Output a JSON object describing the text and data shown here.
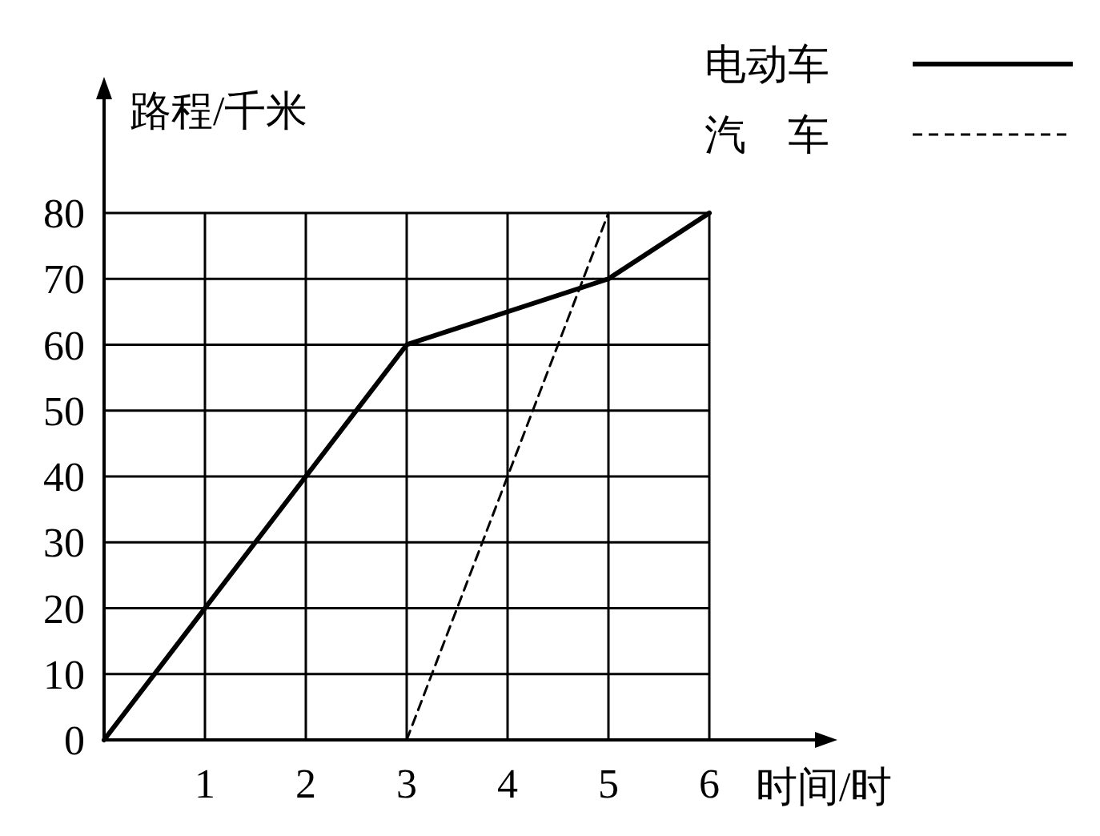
{
  "chart_data": {
    "type": "line",
    "xlabel": "时间/时",
    "ylabel": "路程/千米",
    "xlim": [
      0,
      6
    ],
    "xticks": [
      1,
      2,
      3,
      4,
      5,
      6
    ],
    "ylim": [
      0,
      80
    ],
    "yticks": [
      0,
      10,
      20,
      30,
      40,
      50,
      60,
      70,
      80
    ],
    "grid": true,
    "legend": "top right",
    "marker": "none",
    "series": [
      {
        "name": "电动车",
        "color": "#000000",
        "x": [
          0,
          1,
          2,
          3,
          5,
          6
        ],
        "values": [
          0,
          20,
          40,
          60,
          70,
          80
        ],
        "line_style": "solid"
      },
      {
        "name": "汽　车",
        "color": "#000000",
        "x": [
          3,
          5
        ],
        "values": [
          0,
          80
        ],
        "line_style": "dashed"
      }
    ]
  }
}
